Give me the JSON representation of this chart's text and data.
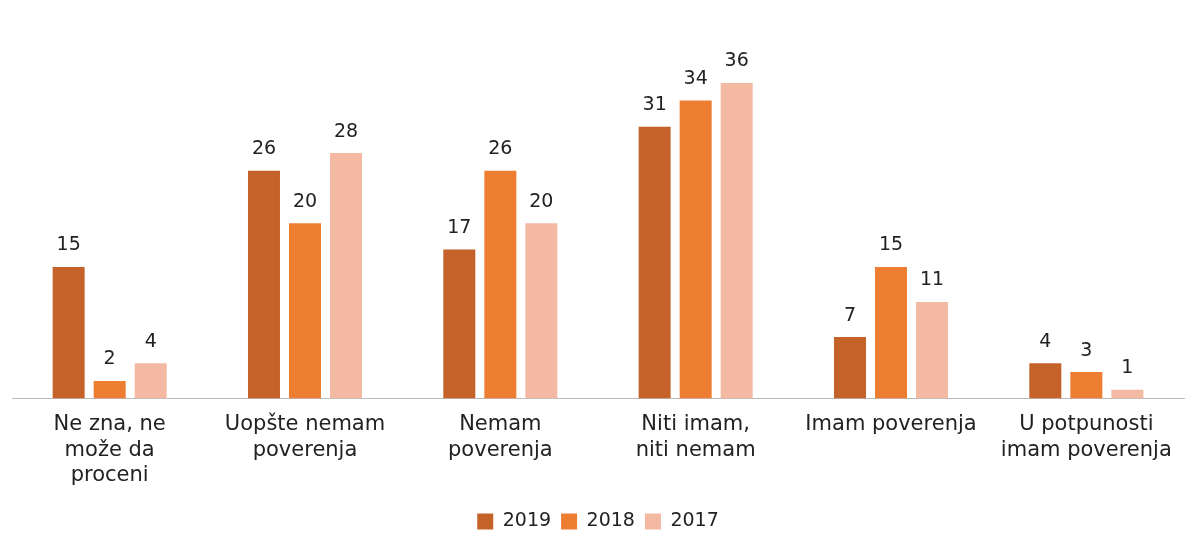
{
  "chart_data": {
    "type": "bar",
    "categories": [
      "Ne zna, ne može da proceni",
      "Uopšte nemam poverenja",
      "Nemam poverenja",
      "Niti imam, niti nemam",
      "Imam poverenja",
      "U potpunosti imam poverenja"
    ],
    "series": [
      {
        "name": "2019",
        "color": "#c4622a",
        "values": [
          15,
          26,
          17,
          31,
          7,
          4
        ]
      },
      {
        "name": "2018",
        "color": "#ed7d31",
        "values": [
          2,
          20,
          26,
          34,
          15,
          3
        ]
      },
      {
        "name": "2017",
        "color": "#f4b9a3",
        "values": [
          4,
          28,
          20,
          36,
          11,
          1
        ]
      }
    ],
    "data_labels": true,
    "legend": "bottom",
    "grid": false
  }
}
